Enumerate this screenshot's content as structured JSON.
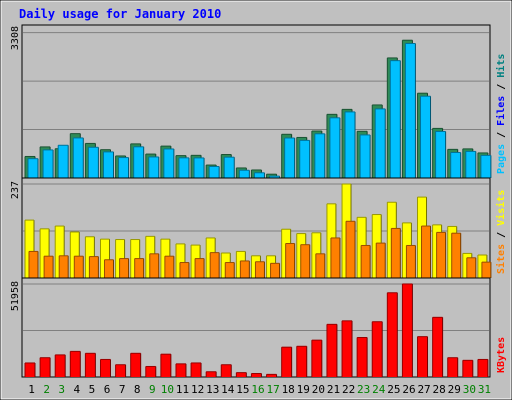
{
  "chart_data": {
    "type": "bar",
    "title": "Daily usage for January 2010",
    "categories": [
      "1",
      "2",
      "3",
      "4",
      "5",
      "6",
      "7",
      "8",
      "9",
      "10",
      "11",
      "12",
      "13",
      "14",
      "15",
      "16",
      "17",
      "18",
      "19",
      "20",
      "21",
      "22",
      "23",
      "24",
      "25",
      "26",
      "27",
      "28",
      "29",
      "30",
      "31"
    ],
    "weekend_days": [
      "2",
      "3",
      "9",
      "10",
      "16",
      "17",
      "23",
      "24",
      "30",
      "31"
    ],
    "panels": [
      {
        "id": "pages-files-hits",
        "ymax": 3308,
        "ymax_label": "3308",
        "legend": [
          {
            "label": "Pages",
            "color": "#00C0FF"
          },
          {
            "label": "Files",
            "color": "#0000FF"
          },
          {
            "label": "Hits",
            "color": "#008080"
          }
        ],
        "series": [
          {
            "name": "Hits",
            "color": "#2E8B57",
            "values": [
              490,
              708,
              667,
              1010,
              787,
              645,
              502,
              777,
              545,
              726,
              510,
              516,
              295,
              535,
              229,
              183,
              87,
              995,
              923,
              1069,
              1449,
              1562,
              1063,
              1663,
              2733,
              3136,
              1930,
              1129,
              652,
              663,
              571
            ]
          },
          {
            "name": "Files",
            "color": "#00C0FF",
            "values": [
              440,
              639,
              745,
              912,
              699,
              594,
              465,
              710,
              479,
              661,
              459,
              457,
              262,
              474,
              176,
              119,
              43,
              910,
              856,
              1006,
              1370,
              1504,
              980,
              1573,
              2671,
              3061,
              1861,
              1059,
              580,
              605,
              514
            ]
          }
        ]
      },
      {
        "id": "sites-visits",
        "ymax": 237,
        "ymax_label": "237",
        "legend": [
          {
            "label": "Sites",
            "color": "#FF8000"
          },
          {
            "label": "Visits",
            "color": "#FFFF00"
          }
        ],
        "series": [
          {
            "name": "Visits",
            "color": "#FFFF00",
            "values": [
              146,
              124,
              131,
              116,
              104,
              98,
              97,
              97,
              105,
              98,
              86,
              83,
              101,
              63,
              67,
              56,
              56,
              123,
              112,
              114,
              187,
              237,
              153,
              160,
              191,
              139,
              204,
              134,
              130,
              62,
              58
            ]
          },
          {
            "name": "Sites",
            "color": "#FF8000",
            "values": [
              67,
              55,
              56,
              55,
              54,
              46,
              49,
              49,
              61,
              55,
              39,
              49,
              64,
              39,
              43,
              41,
              37,
              87,
              84,
              61,
              101,
              143,
              82,
              88,
              125,
              82,
              131,
              115,
              113,
              51,
              40
            ]
          }
        ]
      },
      {
        "id": "kbytes",
        "ymax": 51958,
        "ymax_label": "51958",
        "legend": [
          {
            "label": "KBytes",
            "color": "#FF0000"
          }
        ],
        "series": [
          {
            "name": "KBytes",
            "color": "#FF0000",
            "values": [
              7843,
              10781,
              12350,
              14309,
              13232,
              9800,
              6860,
              13232,
              5880,
              12742,
              7350,
              7850,
              2940,
              6860,
              2450,
              1960,
              1470,
              16661,
              17151,
              20581,
              29402,
              31362,
              22051,
              30872,
              47043,
              51958,
              22541,
              33322,
              10781,
              9310,
              9800
            ]
          }
        ]
      }
    ],
    "grid": true
  }
}
